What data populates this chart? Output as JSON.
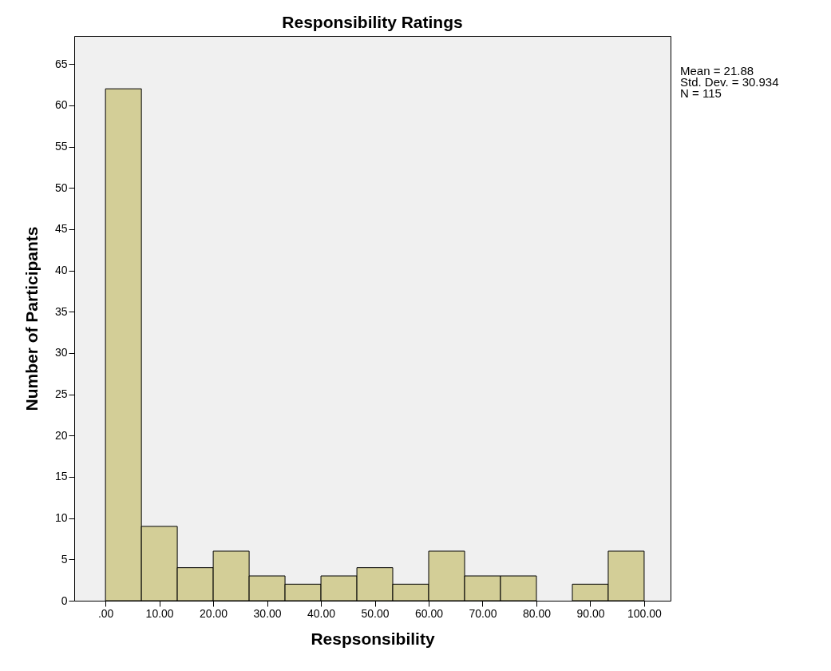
{
  "chart_data": {
    "type": "histogram",
    "title": "Responsibility Ratings",
    "xlabel": "Respsonsibility",
    "ylabel": "Number of Participants",
    "bins": [
      0,
      6.67,
      13.33,
      20,
      26.67,
      33.33,
      40,
      46.67,
      53.33,
      60,
      66.67,
      73.33,
      80,
      86.67,
      93.33,
      100
    ],
    "values": [
      62,
      9,
      4,
      6,
      3,
      2,
      3,
      4,
      2,
      6,
      3,
      3,
      0,
      2,
      6
    ],
    "color": "#d3ce97",
    "xlim": [
      -5.8,
      104.9
    ],
    "xticks": [
      {
        "value": 0,
        "label": ".00"
      },
      {
        "value": 10,
        "label": "10.00"
      },
      {
        "value": 20,
        "label": "20.00"
      },
      {
        "value": 30,
        "label": "30.00"
      },
      {
        "value": 40,
        "label": "40.00"
      },
      {
        "value": 50,
        "label": "50.00"
      },
      {
        "value": 60,
        "label": "60.00"
      },
      {
        "value": 70,
        "label": "70.00"
      },
      {
        "value": 80,
        "label": "80.00"
      },
      {
        "value": 90,
        "label": "90.00"
      },
      {
        "value": 100,
        "label": "100.00"
      }
    ],
    "ylim": [
      0,
      68.4
    ],
    "yticks": [
      0,
      5,
      10,
      15,
      20,
      25,
      30,
      35,
      40,
      45,
      50,
      55,
      60,
      65
    ],
    "grid": false,
    "annotations": [
      "Mean = 21.88",
      "Std. Dev. = 30.934",
      "N = 115"
    ]
  }
}
